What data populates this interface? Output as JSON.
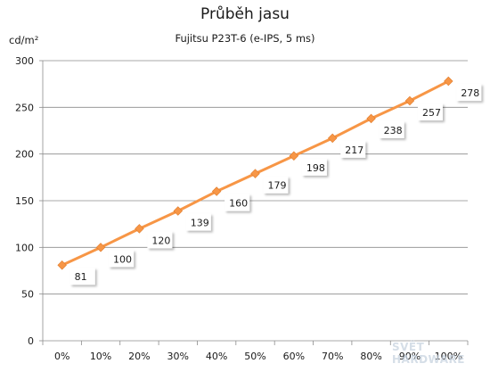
{
  "title": "Průběh jasu",
  "subtitle": "Fujitsu P23T-6 (e-IPS, 5 ms)",
  "y_unit": "cd/m²",
  "watermark": "SVĚT HARDWARE",
  "chart_data": {
    "type": "line",
    "title": "Průběh jasu",
    "subtitle": "Fujitsu P23T-6 (e-IPS, 5 ms)",
    "ylabel": "cd/m²",
    "xlabel": "",
    "categories": [
      "0%",
      "10%",
      "20%",
      "30%",
      "40%",
      "50%",
      "60%",
      "70%",
      "80%",
      "90%",
      "100%"
    ],
    "series": [
      {
        "values": [
          81,
          100,
          120,
          139,
          160,
          179,
          198,
          217,
          238,
          257,
          278
        ],
        "color": "#f79646"
      }
    ],
    "ylim": [
      0,
      300
    ],
    "yticks": [
      0,
      50,
      100,
      150,
      200,
      250,
      300
    ],
    "grid": true,
    "legend": "none",
    "data_labels": true
  }
}
